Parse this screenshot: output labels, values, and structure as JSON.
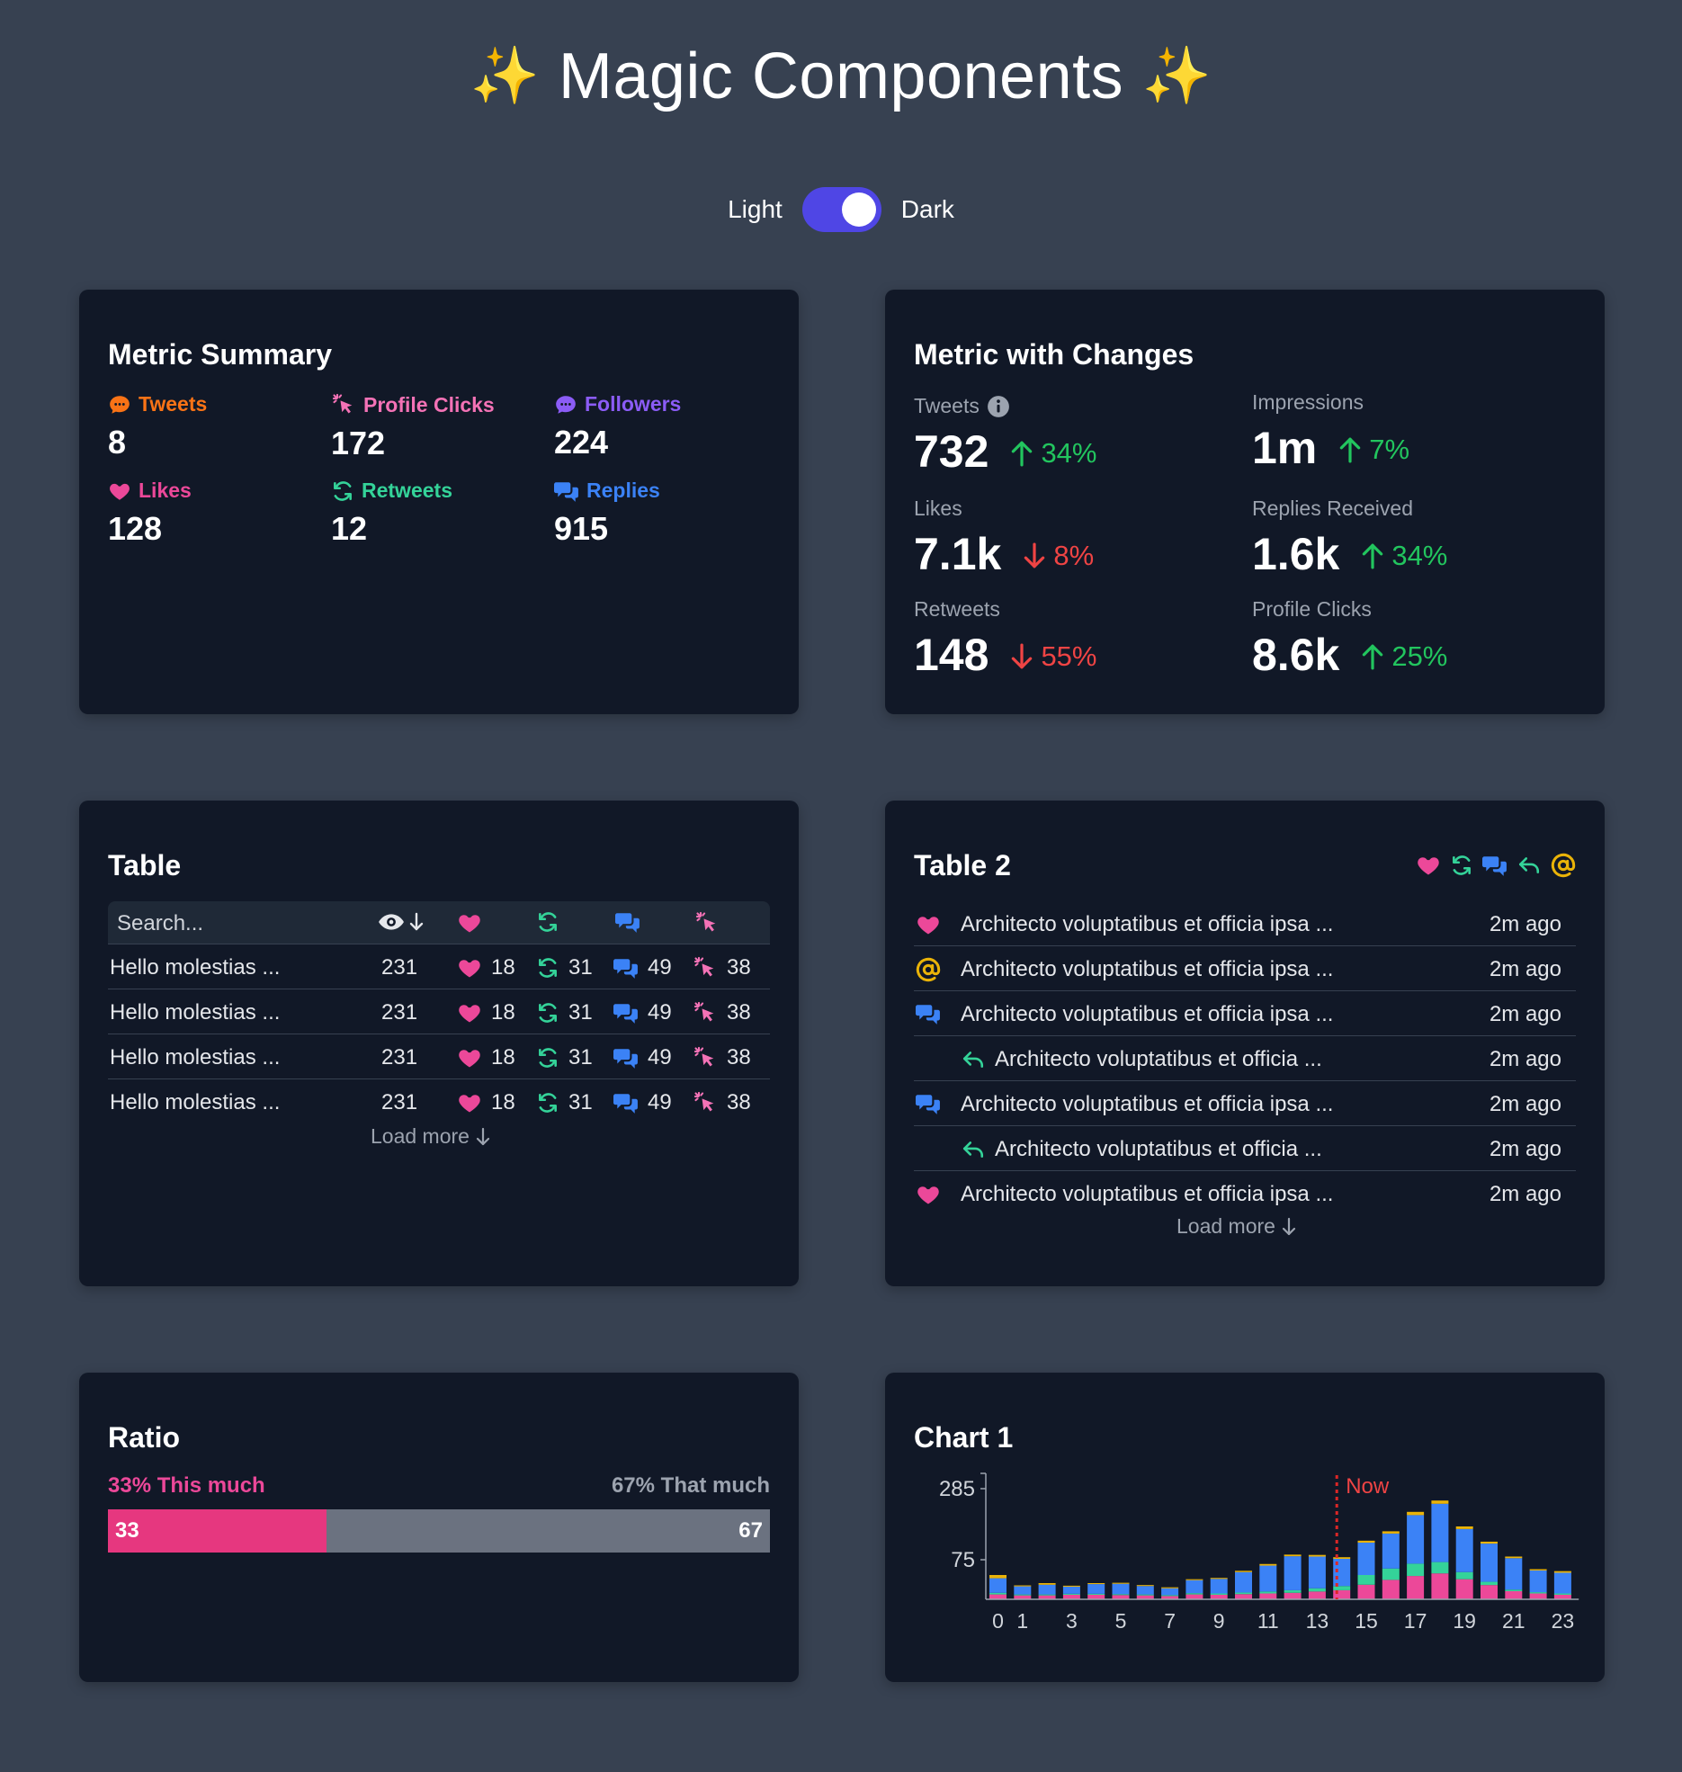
{
  "page": {
    "title": "Magic Components",
    "sparkle": "✨",
    "toggle": {
      "light_label": "Light",
      "dark_label": "Dark",
      "state": "dark"
    }
  },
  "colors": {
    "tweets": "#f97316",
    "profile_clicks": "#f472b6",
    "followers": "#8b5cf6",
    "likes": "#ec4899",
    "retweets": "#34d399",
    "replies": "#3b82f6",
    "mention": "#eab308",
    "up": "#22c55e",
    "down": "#ef4444"
  },
  "metric_summary": {
    "title": "Metric Summary",
    "items": [
      {
        "label": "Tweets",
        "value": "8",
        "icon": "chat-bubble-icon",
        "color": "#f97316"
      },
      {
        "label": "Profile Clicks",
        "value": "172",
        "icon": "cursor-click-icon",
        "color": "#f472b6"
      },
      {
        "label": "Followers",
        "value": "224",
        "icon": "chat-bubble-icon",
        "color": "#8b5cf6"
      },
      {
        "label": "Likes",
        "value": "128",
        "icon": "heart-icon",
        "color": "#ec4899"
      },
      {
        "label": "Retweets",
        "value": "12",
        "icon": "retweet-icon",
        "color": "#34d399"
      },
      {
        "label": "Replies",
        "value": "915",
        "icon": "replies-icon",
        "color": "#3b82f6"
      }
    ]
  },
  "metric_changes": {
    "title": "Metric with Changes",
    "items": [
      {
        "label": "Tweets",
        "value": "732",
        "change": "34%",
        "direction": "up",
        "info_icon": true
      },
      {
        "label": "Impressions",
        "value": "1m",
        "change": "7%",
        "direction": "up"
      },
      {
        "label": "Likes",
        "value": "7.1k",
        "change": "8%",
        "direction": "down"
      },
      {
        "label": "Replies Received",
        "value": "1.6k",
        "change": "34%",
        "direction": "up"
      },
      {
        "label": "Retweets",
        "value": "148",
        "change": "55%",
        "direction": "down"
      },
      {
        "label": "Profile Clicks",
        "value": "8.6k",
        "change": "25%",
        "direction": "up"
      }
    ]
  },
  "table1": {
    "title": "Table",
    "search_placeholder": "Search...",
    "columns": [
      "views",
      "likes",
      "retweets",
      "replies",
      "clicks"
    ],
    "rows": [
      {
        "text": "Hello molestias ...",
        "views": "231",
        "likes": "18",
        "retweets": "31",
        "replies": "49",
        "clicks": "38"
      },
      {
        "text": "Hello molestias ...",
        "views": "231",
        "likes": "18",
        "retweets": "31",
        "replies": "49",
        "clicks": "38"
      },
      {
        "text": "Hello molestias ...",
        "views": "231",
        "likes": "18",
        "retweets": "31",
        "replies": "49",
        "clicks": "38"
      },
      {
        "text": "Hello molestias ...",
        "views": "231",
        "likes": "18",
        "retweets": "31",
        "replies": "49",
        "clicks": "38"
      }
    ],
    "load_more": "Load more"
  },
  "table2": {
    "title": "Table 2",
    "filter_icons": [
      "heart-icon",
      "retweet-icon",
      "replies-icon",
      "reply-arrow-icon",
      "at-sign-icon"
    ],
    "rows": [
      {
        "type": "like",
        "text": "Architecto voluptatibus et officia ipsa ...",
        "time": "2m ago",
        "indent": false
      },
      {
        "type": "mention",
        "text": "Architecto voluptatibus et officia ipsa ...",
        "time": "2m ago",
        "indent": false
      },
      {
        "type": "reply",
        "text": "Architecto voluptatibus et officia ipsa ...",
        "time": "2m ago",
        "indent": false
      },
      {
        "type": "thread",
        "text": "Architecto voluptatibus et officia ...",
        "time": "2m ago",
        "indent": true
      },
      {
        "type": "reply",
        "text": "Architecto voluptatibus et officia ipsa ...",
        "time": "2m ago",
        "indent": false
      },
      {
        "type": "thread",
        "text": "Architecto voluptatibus et officia ...",
        "time": "2m ago",
        "indent": true
      },
      {
        "type": "like",
        "text": "Architecto voluptatibus et officia ipsa ...",
        "time": "2m ago",
        "indent": false
      }
    ],
    "load_more": "Load more"
  },
  "ratio": {
    "title": "Ratio",
    "left_label": "33% This much",
    "right_label": "67% That much",
    "left_value": "33",
    "right_value": "67",
    "left_fraction": 0.33
  },
  "chart1": {
    "title": "Chart 1",
    "now_label": "Now",
    "now_index": 14
  },
  "chart_data": {
    "type": "bar",
    "stacked": true,
    "x": [
      0,
      1,
      2,
      3,
      4,
      5,
      6,
      7,
      8,
      9,
      10,
      11,
      12,
      13,
      14,
      15,
      16,
      17,
      18,
      19,
      20,
      21,
      22,
      23
    ],
    "x_tick_labels": [
      "0",
      "1",
      "3",
      "5",
      "7",
      "9",
      "11",
      "13",
      "15",
      "17",
      "19",
      "21",
      "23"
    ],
    "y_tick_labels": [
      "285",
      "75"
    ],
    "series": [
      {
        "color": "#ec4899",
        "values": [
          15,
          12,
          12,
          14,
          14,
          13,
          12,
          10,
          15,
          14,
          16,
          18,
          20,
          24,
          28,
          45,
          60,
          72,
          80,
          62,
          44,
          25,
          18,
          14
        ]
      },
      {
        "color": "#34d399",
        "values": [
          5,
          3,
          3,
          3,
          3,
          3,
          3,
          3,
          4,
          4,
          5,
          6,
          8,
          10,
          13,
          30,
          35,
          38,
          35,
          22,
          10,
          5,
          4,
          4
        ]
      },
      {
        "color": "#3b82f6",
        "values": [
          45,
          25,
          30,
          22,
          30,
          32,
          26,
          21,
          40,
          45,
          63,
          80,
          105,
          98,
          84,
          100,
          108,
          150,
          180,
          133,
          118,
          97,
          67,
          64
        ]
      },
      {
        "color": "#eab308",
        "values": [
          10,
          3,
          5,
          3,
          3,
          3,
          3,
          3,
          3,
          3,
          4,
          5,
          5,
          5,
          5,
          6,
          7,
          10,
          10,
          8,
          6,
          5,
          4,
          5
        ]
      }
    ],
    "ylabel": "",
    "xlabel": ""
  }
}
